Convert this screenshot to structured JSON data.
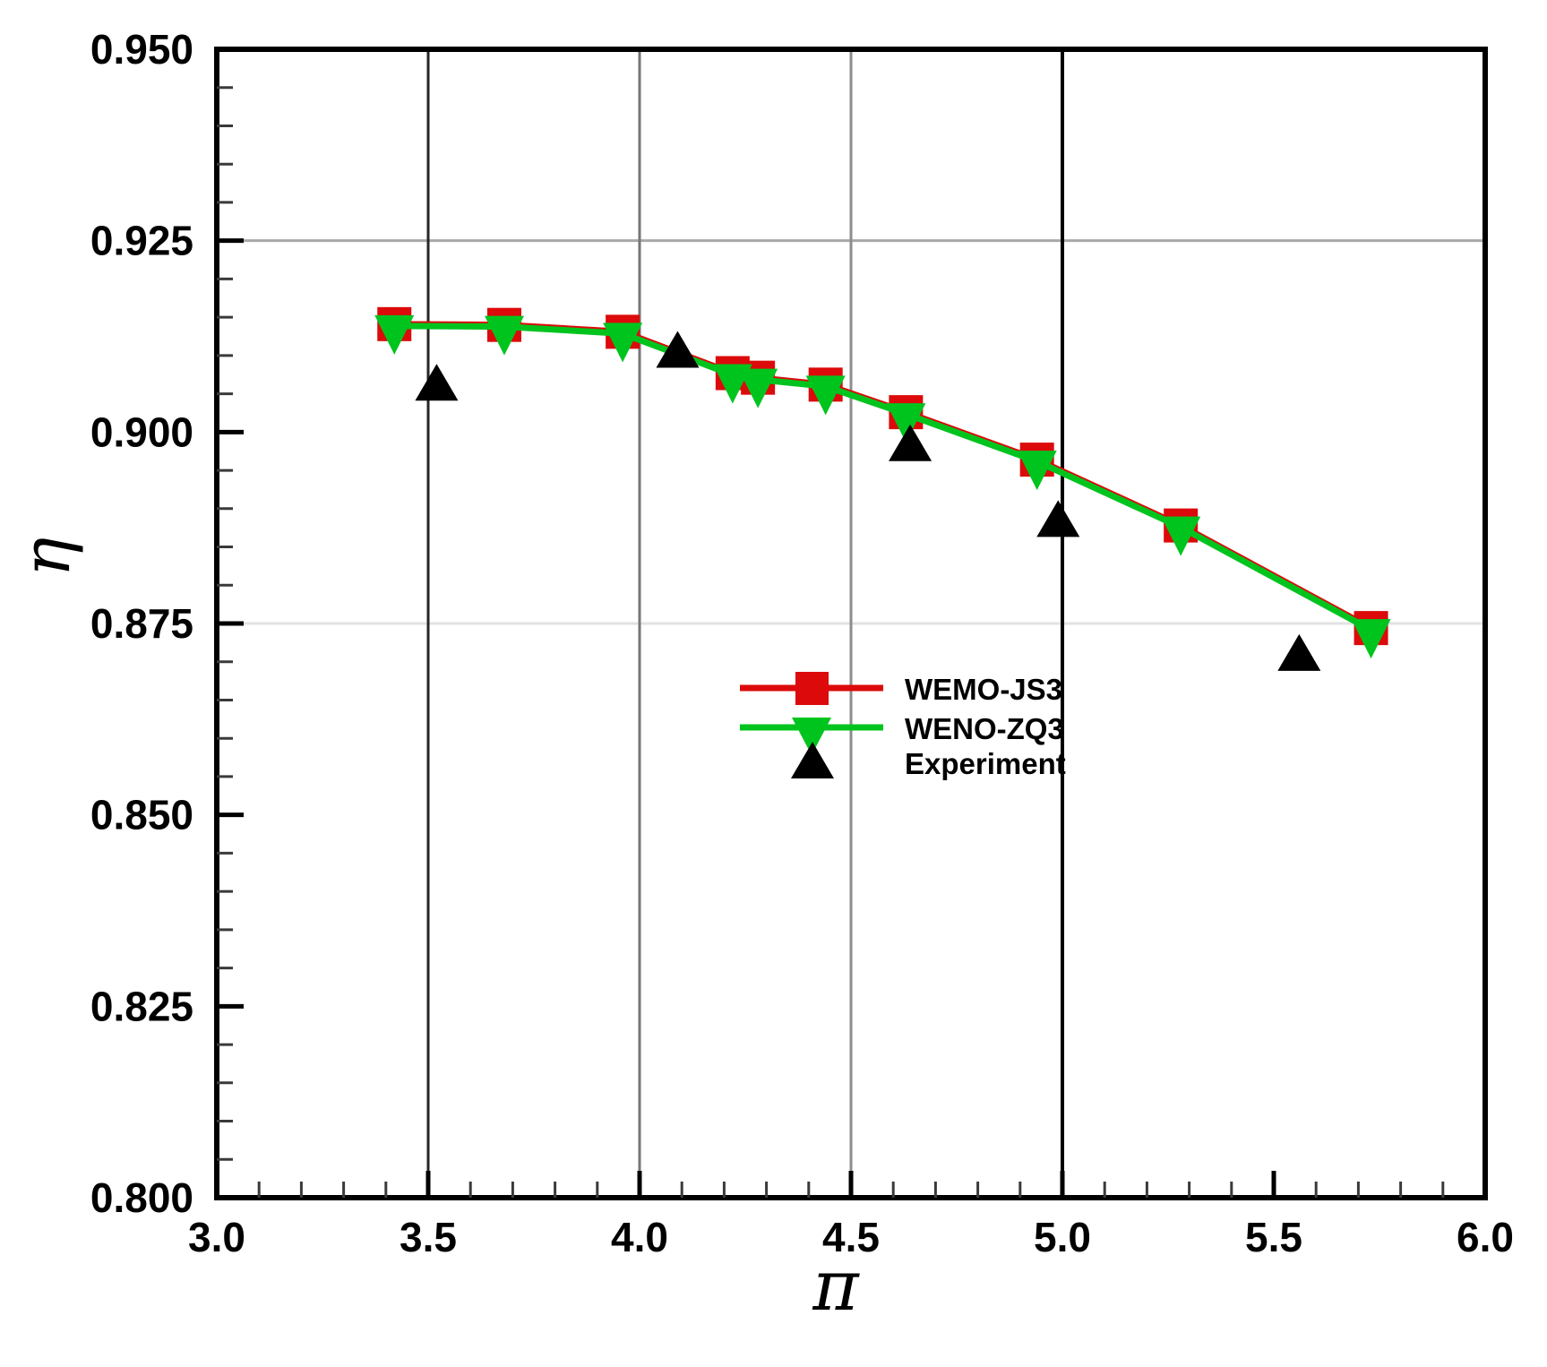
{
  "chart_data": {
    "type": "line",
    "title": "",
    "xlabel": "π",
    "ylabel": "η",
    "xlim": [
      3.0,
      6.0
    ],
    "ylim": [
      0.8,
      0.95
    ],
    "x_tick_labels": [
      "3.0",
      "3.5",
      "4.0",
      "4.5",
      "5.0",
      "5.5",
      "6.0"
    ],
    "y_tick_labels": [
      "0.950",
      "0.925",
      "0.900",
      "0.875",
      "0.850",
      "0.825",
      "0.800"
    ],
    "x_major_step": 0.5,
    "x_minor_step": 0.1,
    "y_major_step": 0.025,
    "y_minor_step": 0.005,
    "grid": {
      "vertical": [
        {
          "x": 3.5,
          "color": "#262626",
          "width": 3
        },
        {
          "x": 4.0,
          "color": "#767676",
          "width": 3
        },
        {
          "x": 4.5,
          "color": "#8c8c8c",
          "width": 3
        },
        {
          "x": 5.0,
          "color": "#000000",
          "width": 4
        }
      ],
      "horizontal": [
        {
          "y": 0.925,
          "color": "#a8a8a8",
          "width": 3
        },
        {
          "y": 0.875,
          "color": "#e2e2e2",
          "width": 3
        }
      ]
    },
    "series": [
      {
        "name": "WEMO-JS3",
        "color": "#dc0a0a",
        "marker": "square",
        "line": true,
        "x": [
          3.42,
          3.68,
          3.96,
          4.22,
          4.28,
          4.44,
          4.63,
          4.94,
          5.28,
          5.73
        ],
        "y": [
          0.9141,
          0.914,
          0.9131,
          0.9077,
          0.9071,
          0.9062,
          0.9026,
          0.8964,
          0.8878,
          0.8744
        ]
      },
      {
        "name": "WENO-ZQ3",
        "color": "#00c41e",
        "marker": "triangle-down",
        "line": true,
        "x": [
          3.42,
          3.68,
          3.96,
          4.22,
          4.28,
          4.44,
          4.63,
          4.94,
          5.28,
          5.73
        ],
        "y": [
          0.9141,
          0.914,
          0.9131,
          0.9077,
          0.9071,
          0.9062,
          0.9026,
          0.8964,
          0.8878,
          0.8744
        ]
      },
      {
        "name": "Experiment",
        "color": "#000000",
        "marker": "triangle-up",
        "line": false,
        "x": [
          3.52,
          4.09,
          4.64,
          4.99,
          5.56
        ],
        "y": [
          0.9061,
          0.9104,
          0.8982,
          0.8883,
          0.8708
        ]
      }
    ],
    "legend": {
      "position": "inside-center-right"
    }
  }
}
